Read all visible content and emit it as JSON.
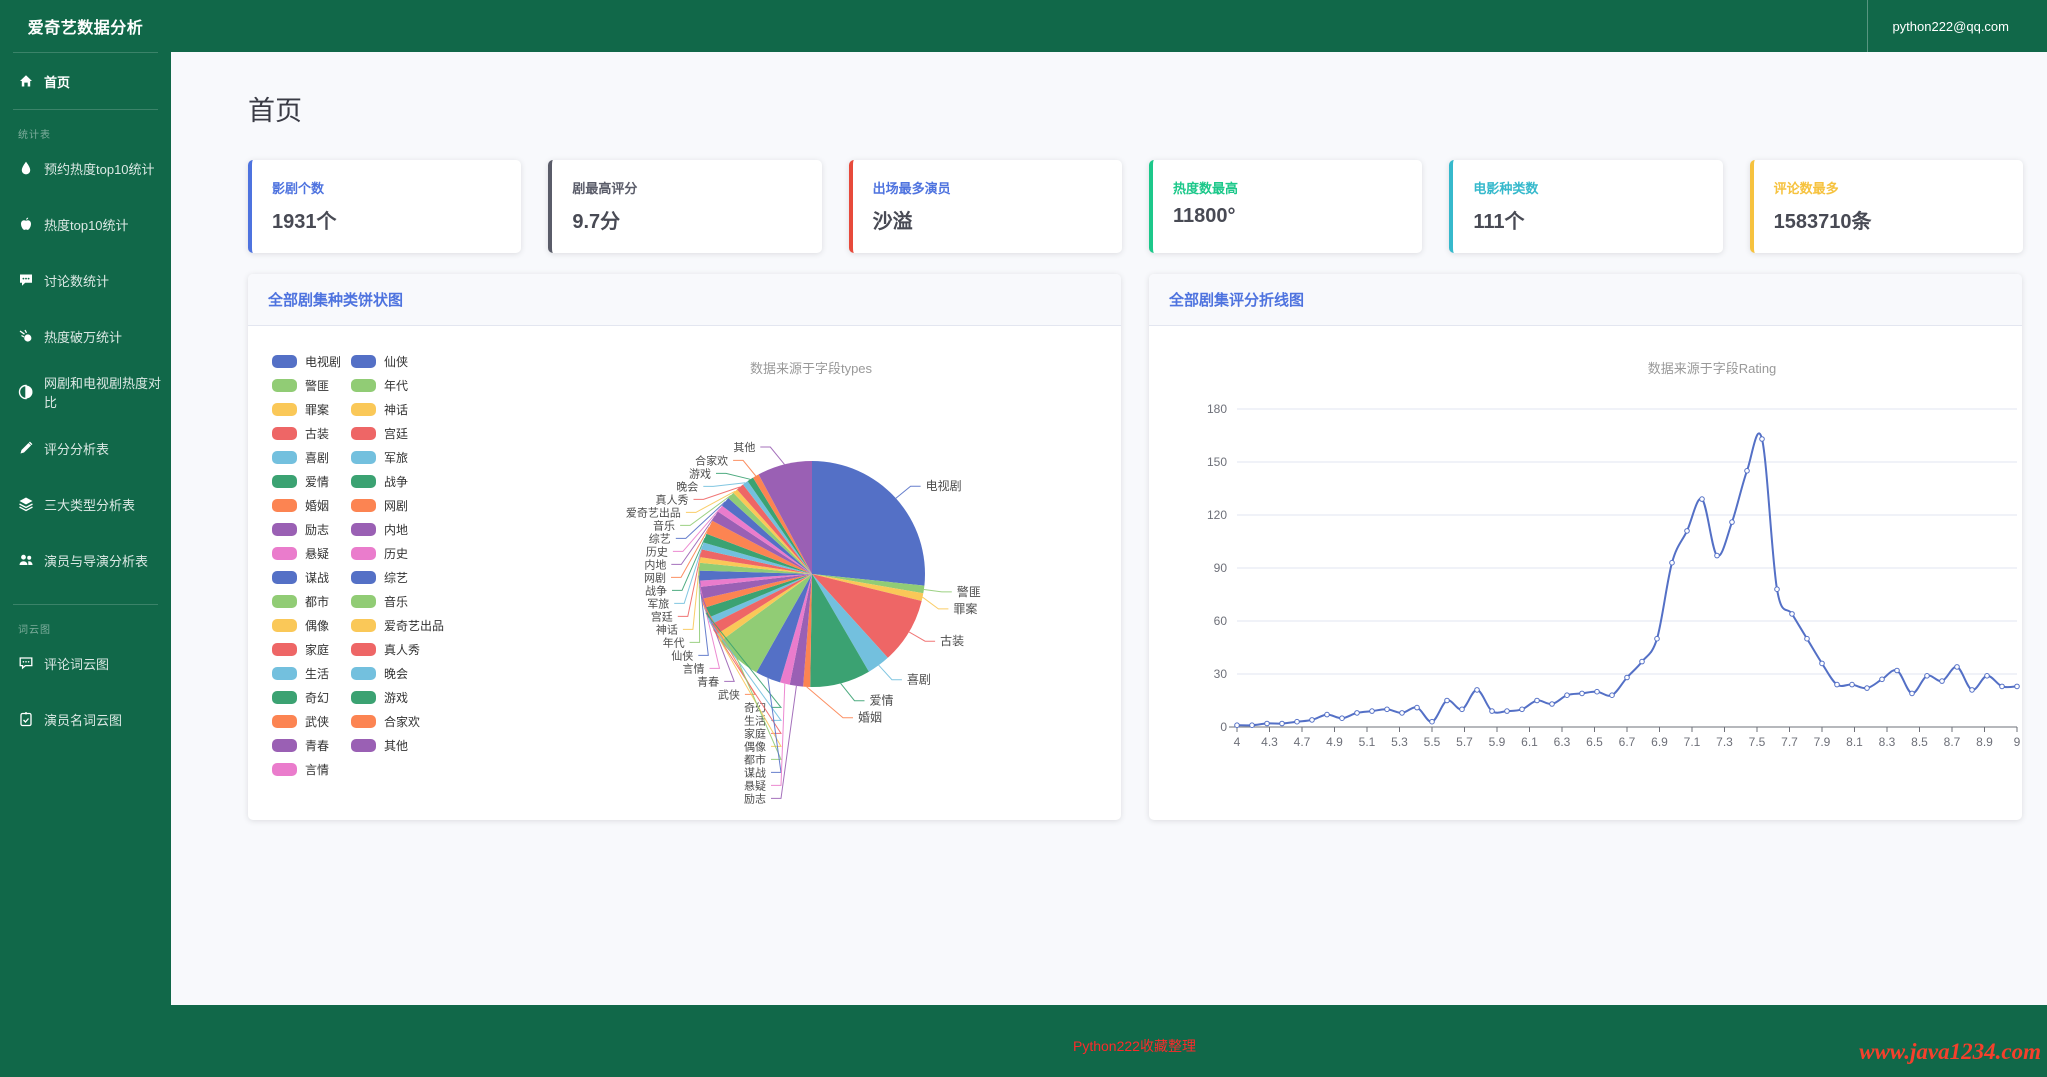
{
  "app": {
    "title": "爱奇艺数据分析",
    "user_email": "python222@qq.com"
  },
  "page": {
    "heading": "首页"
  },
  "sidebar": {
    "home_label": "首页",
    "sections": [
      {
        "label": "统计表",
        "items": [
          {
            "icon": "flame-icon",
            "label": "预约热度top10统计"
          },
          {
            "icon": "apple-icon",
            "label": "热度top10统计"
          },
          {
            "icon": "comment-icon",
            "label": "讨论数统计"
          },
          {
            "icon": "meteor-icon",
            "label": "热度破万统计"
          },
          {
            "icon": "contrast-icon",
            "label": "网剧和电视剧热度对比"
          },
          {
            "icon": "pen-icon",
            "label": "评分分析表"
          },
          {
            "icon": "layers-icon",
            "label": "三大类型分析表"
          },
          {
            "icon": "users-icon",
            "label": "演员与导演分析表"
          }
        ]
      },
      {
        "label": "词云图",
        "items": [
          {
            "icon": "comment-dots-icon",
            "label": "评论词云图"
          },
          {
            "icon": "clipboard-icon",
            "label": "演员名词云图"
          }
        ]
      }
    ]
  },
  "stat_cards": [
    {
      "label": "影剧个数",
      "value": "1931个",
      "accent": "#4e73df",
      "label_color": "#4e73df"
    },
    {
      "label": "剧最高评分",
      "value": "9.7分",
      "accent": "#5a5c69",
      "label_color": "#5a5c69"
    },
    {
      "label": "出场最多演员",
      "value": "沙溢",
      "accent": "#e74a3b",
      "label_color": "#4e73df"
    },
    {
      "label": "热度数最高",
      "value": "11800°",
      "accent": "#1cc88a",
      "label_color": "#1cc88a"
    },
    {
      "label": "电影种类数",
      "value": "111个",
      "accent": "#36b9cc",
      "label_color": "#36b9cc"
    },
    {
      "label": "评论数最多",
      "value": "1583710条",
      "accent": "#f6c23e",
      "label_color": "#f6c23e"
    }
  ],
  "charts": {
    "pie": {
      "card_title": "全部剧集种类饼状图"
    },
    "line": {
      "card_title": "全部剧集评分折线图"
    }
  },
  "chart_data": [
    {
      "type": "pie",
      "title": "数据来源于字段types",
      "legend_position": "left",
      "palette": [
        "#5470c6",
        "#91cc75",
        "#fac858",
        "#ee6666",
        "#73c0de",
        "#3ba272",
        "#fc8452",
        "#9a60b4",
        "#ea7ccc"
      ],
      "series": [
        {
          "name": "电视剧",
          "value": 26.5
        },
        {
          "name": "警匪",
          "value": 1.1
        },
        {
          "name": "罪案",
          "value": 1.1
        },
        {
          "name": "古装",
          "value": 9.4
        },
        {
          "name": "喜剧",
          "value": 3.3
        },
        {
          "name": "爱情",
          "value": 8.6
        },
        {
          "name": "婚姻",
          "value": 1.0
        },
        {
          "name": "励志",
          "value": 1.9
        },
        {
          "name": "悬疑",
          "value": 1.4
        },
        {
          "name": "谋战",
          "value": 3.6
        },
        {
          "name": "都市",
          "value": 6.7
        },
        {
          "name": "偶像",
          "value": 1.1
        },
        {
          "name": "家庭",
          "value": 1.6
        },
        {
          "name": "生活",
          "value": 1.0
        },
        {
          "name": "奇幻",
          "value": 1.5
        },
        {
          "name": "武侠",
          "value": 1.3
        },
        {
          "name": "青春",
          "value": 1.7
        },
        {
          "name": "言情",
          "value": 0.9
        },
        {
          "name": "仙侠",
          "value": 1.4
        },
        {
          "name": "年代",
          "value": 1.1
        },
        {
          "name": "神话",
          "value": 0.8
        },
        {
          "name": "宫廷",
          "value": 1.1
        },
        {
          "name": "军旅",
          "value": 1.0
        },
        {
          "name": "战争",
          "value": 1.3
        },
        {
          "name": "网剧",
          "value": 2.0
        },
        {
          "name": "内地",
          "value": 1.5
        },
        {
          "name": "历史",
          "value": 1.0
        },
        {
          "name": "综艺",
          "value": 1.4
        },
        {
          "name": "音乐",
          "value": 1.0
        },
        {
          "name": "爱奇艺出品",
          "value": 0.7
        },
        {
          "name": "真人秀",
          "value": 1.1
        },
        {
          "name": "晚会",
          "value": 0.8
        },
        {
          "name": "游戏",
          "value": 0.9
        },
        {
          "name": "合家欢",
          "value": 0.9
        },
        {
          "name": "其他",
          "value": 7.8
        }
      ]
    },
    {
      "type": "line",
      "title": "数据来源于字段Rating",
      "series_color": "#5470c6",
      "ylim": [
        0,
        180
      ],
      "y_ticks": [
        0,
        30,
        60,
        90,
        120,
        150,
        180
      ],
      "x_tick_labels": [
        "4",
        "4.3",
        "4.7",
        "4.9",
        "5.1",
        "5.3",
        "5.5",
        "5.7",
        "5.9",
        "6.1",
        "6.3",
        "6.5",
        "6.7",
        "6.9",
        "7.1",
        "7.3",
        "7.5",
        "7.7",
        "7.9",
        "8.1",
        "8.3",
        "8.5",
        "8.7",
        "8.9",
        "9"
      ],
      "values": [
        1,
        1,
        2,
        2,
        3,
        4,
        7,
        5,
        8,
        9,
        10,
        8,
        11,
        3,
        15,
        10,
        21,
        9,
        9,
        10,
        15,
        13,
        18,
        19,
        20,
        18,
        28,
        37,
        50,
        93,
        111,
        129,
        97,
        116,
        145,
        163,
        78,
        64,
        50,
        36,
        24,
        24,
        22,
        27,
        32,
        19,
        29,
        26,
        34,
        21,
        29,
        23,
        23
      ],
      "grid": true
    }
  ],
  "footer": {
    "note": "Python222收藏整理",
    "watermark": "www.java1234.com"
  }
}
